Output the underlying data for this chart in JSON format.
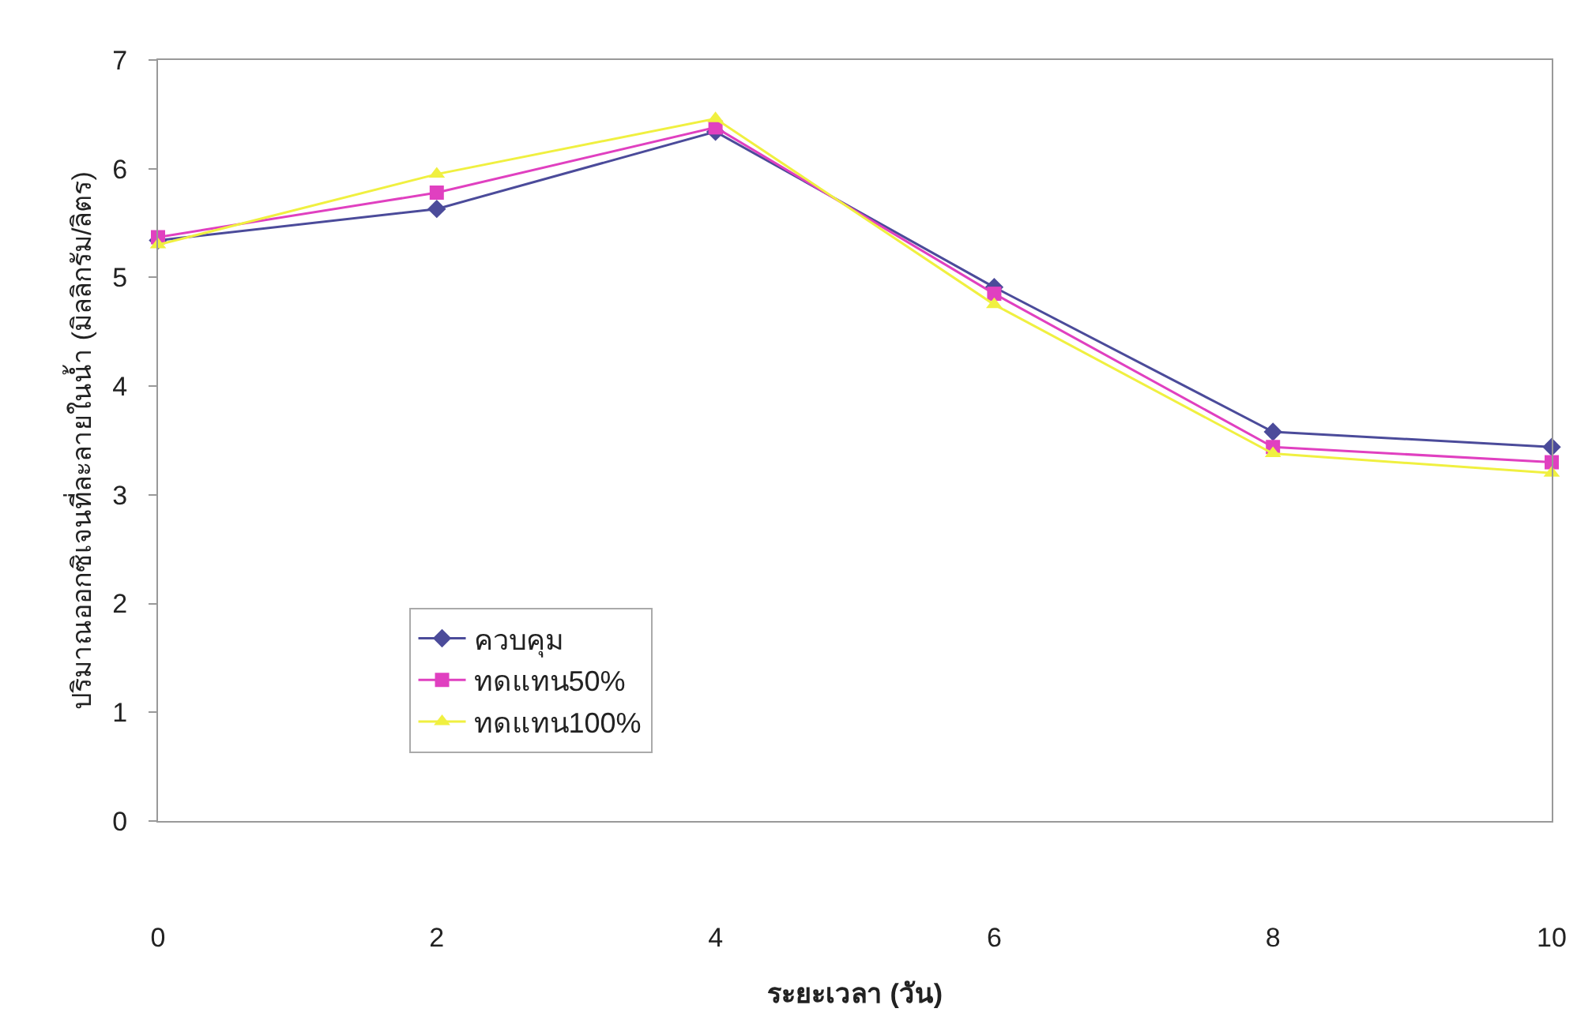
{
  "chart_data": {
    "type": "line",
    "xlabel": "ระยะเวลา (วัน)",
    "ylabel": "ปริมาณออกซิเจนที่ละลายในน้ำ (มิลลิกรัม/ลิตร)",
    "x": [
      0,
      2,
      4,
      6,
      8,
      10
    ],
    "series": [
      {
        "name": "ควบคุม",
        "color": "#4b4b9a",
        "marker": "diamond",
        "values": [
          5.34,
          5.63,
          6.34,
          4.91,
          3.58,
          3.44
        ]
      },
      {
        "name": "ทดแทน50%",
        "color": "#e040c0",
        "marker": "square",
        "values": [
          5.37,
          5.78,
          6.38,
          4.85,
          3.44,
          3.3
        ]
      },
      {
        "name": "ทดแทน100%",
        "color": "#f0f040",
        "marker": "triangle",
        "values": [
          5.3,
          5.95,
          6.46,
          4.75,
          3.38,
          3.2
        ]
      }
    ],
    "xlim": [
      0,
      10
    ],
    "xticks": [
      0,
      2,
      4,
      6,
      8,
      10
    ],
    "ylim": [
      0,
      7
    ],
    "yticks": [
      0,
      1,
      2,
      3,
      4,
      5,
      6,
      7
    ],
    "grid": false,
    "legend": "bottom left",
    "line_style": "solid"
  }
}
